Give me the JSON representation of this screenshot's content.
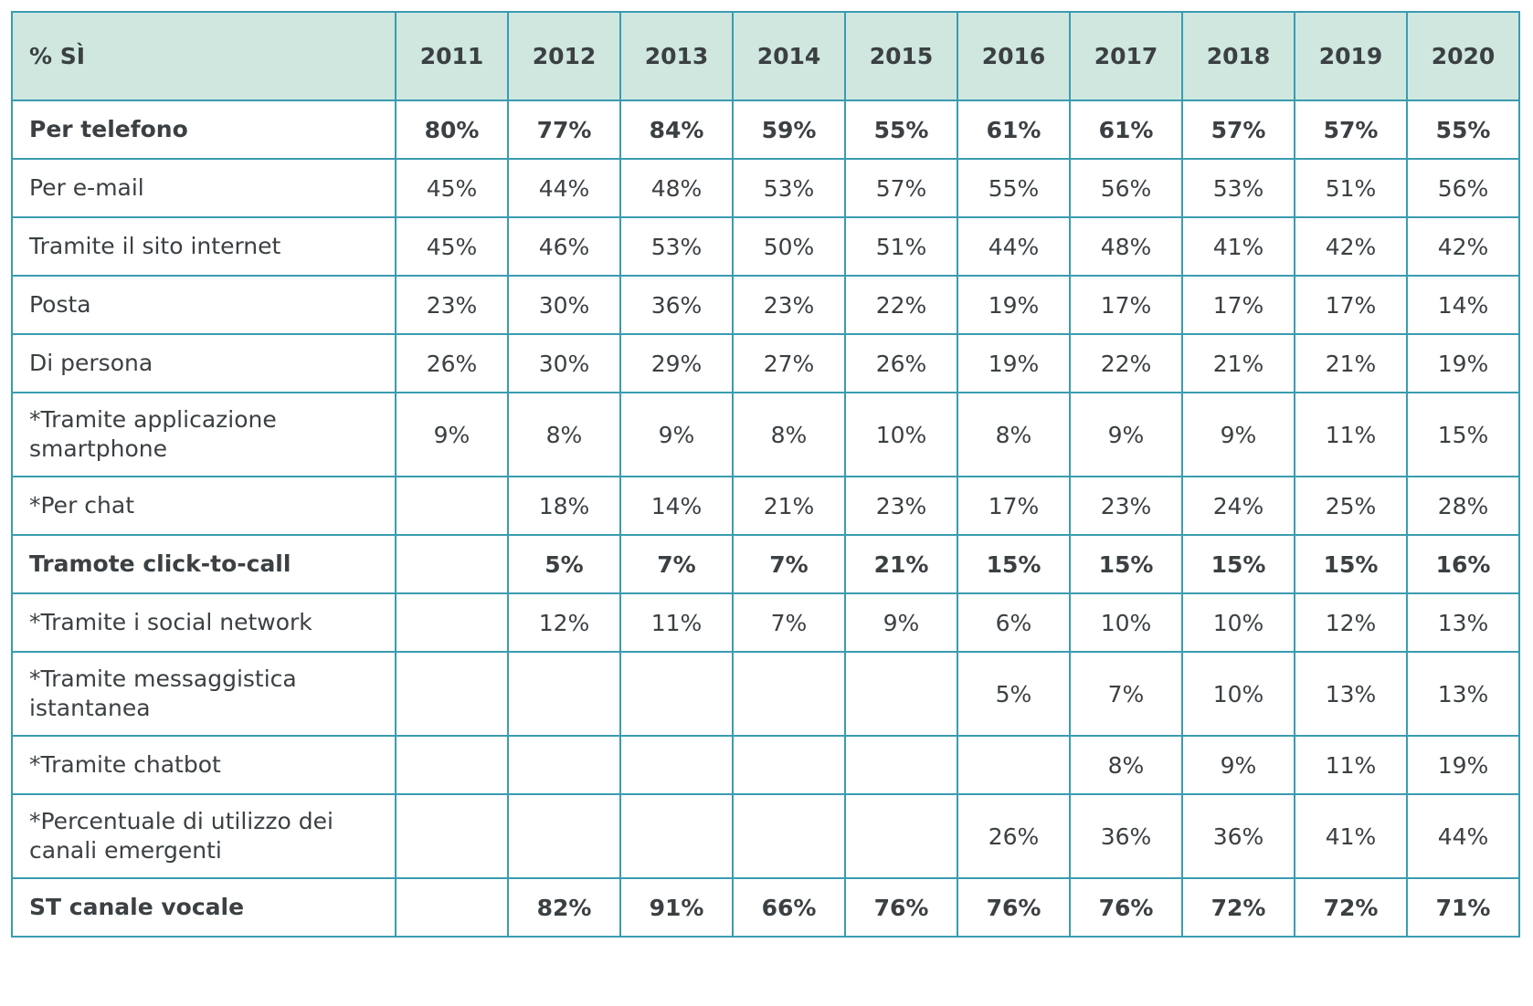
{
  "colors": {
    "header_bg": "#cfe7df",
    "border": "#3a9cb0",
    "text": "#3b4043"
  },
  "table": {
    "header": [
      "% SÌ",
      "2011",
      "2012",
      "2013",
      "2014",
      "2015",
      "2016",
      "2017",
      "2018",
      "2019",
      "2020"
    ],
    "rows": [
      {
        "label": "Per telefono",
        "bold": true,
        "values": [
          "80%",
          "77%",
          "84%",
          "59%",
          "55%",
          "61%",
          "61%",
          "57%",
          "57%",
          "55%"
        ]
      },
      {
        "label": "Per e-mail",
        "bold": false,
        "values": [
          "45%",
          "44%",
          "48%",
          "53%",
          "57%",
          "55%",
          "56%",
          "53%",
          "51%",
          "56%"
        ]
      },
      {
        "label": "Tramite il sito internet",
        "bold": false,
        "values": [
          "45%",
          "46%",
          "53%",
          "50%",
          "51%",
          "44%",
          "48%",
          "41%",
          "42%",
          "42%"
        ]
      },
      {
        "label": "Posta",
        "bold": false,
        "values": [
          "23%",
          "30%",
          "36%",
          "23%",
          "22%",
          "19%",
          "17%",
          "17%",
          "17%",
          "14%"
        ]
      },
      {
        "label": "Di persona",
        "bold": false,
        "values": [
          "26%",
          "30%",
          "29%",
          "27%",
          "26%",
          "19%",
          "22%",
          "21%",
          "21%",
          "19%"
        ]
      },
      {
        "label": "*Tramite applicazione smartphone",
        "bold": false,
        "values": [
          "9%",
          "8%",
          "9%",
          "8%",
          "10%",
          "8%",
          "9%",
          "9%",
          "11%",
          "15%"
        ]
      },
      {
        "label": "*Per chat",
        "bold": false,
        "values": [
          "",
          "18%",
          "14%",
          "21%",
          "23%",
          "17%",
          "23%",
          "24%",
          "25%",
          "28%"
        ]
      },
      {
        "label": "Tramote click-to-call",
        "bold": true,
        "values": [
          "",
          "5%",
          "7%",
          "7%",
          "21%",
          "15%",
          "15%",
          "15%",
          "15%",
          "16%"
        ]
      },
      {
        "label": "*Tramite i social network",
        "bold": false,
        "values": [
          "",
          "12%",
          "11%",
          "7%",
          "9%",
          "6%",
          "10%",
          "10%",
          "12%",
          "13%"
        ]
      },
      {
        "label": "*Tramite messaggistica istantanea",
        "bold": false,
        "values": [
          "",
          "",
          "",
          "",
          "",
          "5%",
          "7%",
          "10%",
          "13%",
          "13%"
        ]
      },
      {
        "label": "*Tramite chatbot",
        "bold": false,
        "values": [
          "",
          "",
          "",
          "",
          "",
          "",
          "8%",
          "9%",
          "11%",
          "19%"
        ]
      },
      {
        "label": "*Percentuale di utilizzo dei canali emergenti",
        "bold": false,
        "values": [
          "",
          "",
          "",
          "",
          "",
          "26%",
          "36%",
          "36%",
          "41%",
          "44%"
        ]
      },
      {
        "label": "ST canale vocale",
        "bold": true,
        "values": [
          "",
          "82%",
          "91%",
          "66%",
          "76%",
          "76%",
          "76%",
          "72%",
          "72%",
          "71%"
        ]
      }
    ]
  },
  "chart_data": {
    "type": "table",
    "columns": [
      "% SÌ",
      "2011",
      "2012",
      "2013",
      "2014",
      "2015",
      "2016",
      "2017",
      "2018",
      "2019",
      "2020"
    ],
    "x": [
      "2011",
      "2012",
      "2013",
      "2014",
      "2015",
      "2016",
      "2017",
      "2018",
      "2019",
      "2020"
    ],
    "series": [
      {
        "name": "Per telefono",
        "values": [
          80,
          77,
          84,
          59,
          55,
          61,
          61,
          57,
          57,
          55
        ]
      },
      {
        "name": "Per e-mail",
        "values": [
          45,
          44,
          48,
          53,
          57,
          55,
          56,
          53,
          51,
          56
        ]
      },
      {
        "name": "Tramite il sito internet",
        "values": [
          45,
          46,
          53,
          50,
          51,
          44,
          48,
          41,
          42,
          42
        ]
      },
      {
        "name": "Posta",
        "values": [
          23,
          30,
          36,
          23,
          22,
          19,
          17,
          17,
          17,
          14
        ]
      },
      {
        "name": "Di persona",
        "values": [
          26,
          30,
          29,
          27,
          26,
          19,
          22,
          21,
          21,
          19
        ]
      },
      {
        "name": "*Tramite applicazione smartphone",
        "values": [
          9,
          8,
          9,
          8,
          10,
          8,
          9,
          9,
          11,
          15
        ]
      },
      {
        "name": "*Per chat",
        "values": [
          null,
          18,
          14,
          21,
          23,
          17,
          23,
          24,
          25,
          28
        ]
      },
      {
        "name": "Tramote click-to-call",
        "values": [
          null,
          5,
          7,
          7,
          21,
          15,
          15,
          15,
          15,
          16
        ]
      },
      {
        "name": "*Tramite i social network",
        "values": [
          null,
          12,
          11,
          7,
          9,
          6,
          10,
          10,
          12,
          13
        ]
      },
      {
        "name": "*Tramite messaggistica istantanea",
        "values": [
          null,
          null,
          null,
          null,
          null,
          5,
          7,
          10,
          13,
          13
        ]
      },
      {
        "name": "*Tramite chatbot",
        "values": [
          null,
          null,
          null,
          null,
          null,
          null,
          8,
          9,
          11,
          19
        ]
      },
      {
        "name": "*Percentuale di utilizzo dei canali emergenti",
        "values": [
          null,
          null,
          null,
          null,
          null,
          26,
          36,
          36,
          41,
          44
        ]
      },
      {
        "name": "ST canale vocale",
        "values": [
          null,
          82,
          91,
          66,
          76,
          76,
          76,
          72,
          72,
          71
        ]
      }
    ]
  }
}
